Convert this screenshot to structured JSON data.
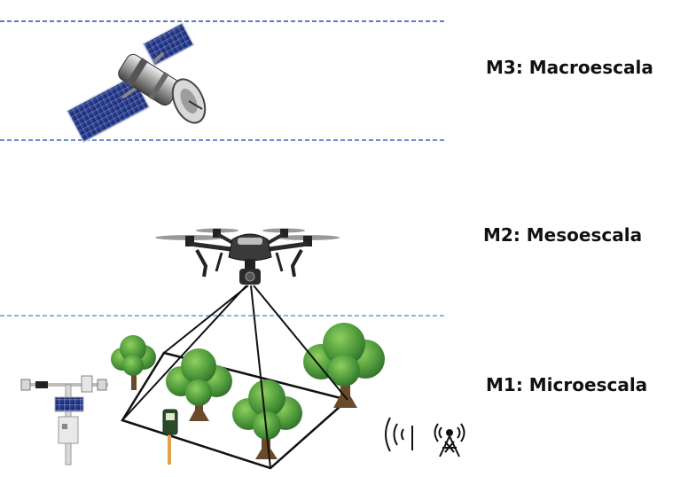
{
  "scales": {
    "macro": {
      "label": "M3: Macroescala"
    },
    "meso": {
      "label": "M2: Mesoescala"
    },
    "micro": {
      "label": "M1: Microescala"
    }
  },
  "colors": {
    "macro_line": "#2b4fb0",
    "meso_line": "#3f68d6",
    "micro_line": "#49a9e6",
    "tree_leaf": "#4f9a3c",
    "tree_trunk": "#6b4a2b",
    "satellite_panel": "#1e2f7a",
    "text": "#111111"
  },
  "icons": [
    "satellite-icon",
    "drone-icon",
    "tree-icon",
    "weather-station-icon",
    "soil-sensor-icon",
    "wireless-signal-icon",
    "radio-tower-icon"
  ]
}
